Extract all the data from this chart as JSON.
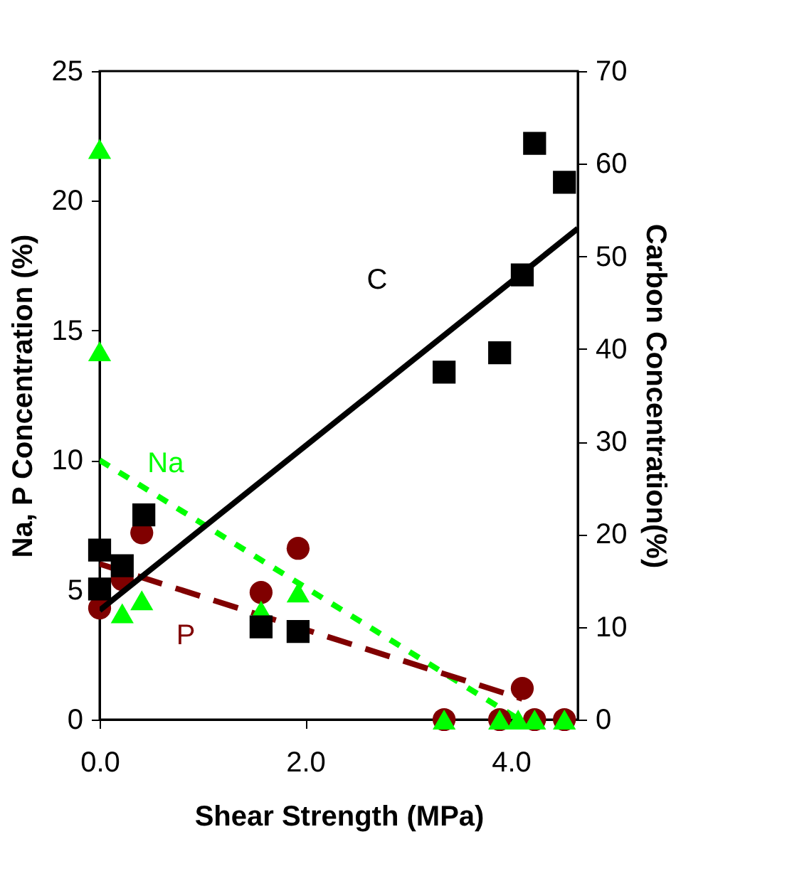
{
  "chart_data": {
    "type": "scatter",
    "xlabel": "Shear Strength (MPa)",
    "ylabel": "Na, P Concentration (%)",
    "y2label": "Carbon Concentration(%)",
    "xlim": [
      0,
      4.65
    ],
    "xticks": [
      {
        "value": 0,
        "label": "0.0"
      },
      {
        "value": 2,
        "label": "2.0"
      },
      {
        "value": 4,
        "label": "4.0"
      }
    ],
    "ylim": [
      0,
      25
    ],
    "yticks": [
      0,
      5,
      10,
      15,
      20,
      25
    ],
    "y2lim": [
      0,
      70
    ],
    "y2ticks": [
      0,
      10,
      20,
      30,
      40,
      50,
      60,
      70
    ],
    "grid": false,
    "series": [
      {
        "type": "line",
        "name": "Na",
        "color": "#00ff00",
        "line_style": "dotted",
        "x": [
          0,
          4.08
        ],
        "values": [
          10.0,
          0
        ]
      },
      {
        "type": "line",
        "name": "P",
        "color": "#800000",
        "line_style": "dashed",
        "x": [
          0,
          4.11
        ],
        "values": [
          6.0,
          0.8
        ]
      },
      {
        "type": "line",
        "name": "C",
        "color": "#000000",
        "line_style": "solid",
        "axis": "y2",
        "x": [
          0,
          4.65
        ],
        "values": [
          11.8,
          53.0
        ]
      },
      {
        "color": "#800000",
        "marker": "circle",
        "x": [
          0,
          0.22,
          0.41,
          1.57,
          1.93,
          3.35,
          3.89,
          4.11,
          4.23,
          4.52
        ],
        "values": [
          4.3,
          5.4,
          7.2,
          4.9,
          6.6,
          0,
          0,
          1.2,
          0,
          0
        ]
      },
      {
        "color": "#00ff00",
        "marker": "triangle",
        "x": [
          0,
          0,
          0.22,
          0.41,
          1.57,
          1.93,
          3.35,
          3.89,
          4.07,
          4.23,
          4.52
        ],
        "values": [
          22,
          14.2,
          4.1,
          4.6,
          4.2,
          4.9,
          0,
          0,
          0,
          0,
          0
        ]
      },
      {
        "color": "#000000",
        "marker": "square",
        "axis": "y2",
        "x": [
          0,
          0,
          0.22,
          0.43,
          1.57,
          1.93,
          3.35,
          3.89,
          4.11,
          4.23,
          4.52
        ],
        "values": [
          18.3,
          14.1,
          16.6,
          22.1,
          10.0,
          9.5,
          37.5,
          39.6,
          48.0,
          62.2,
          58.0
        ]
      }
    ]
  }
}
